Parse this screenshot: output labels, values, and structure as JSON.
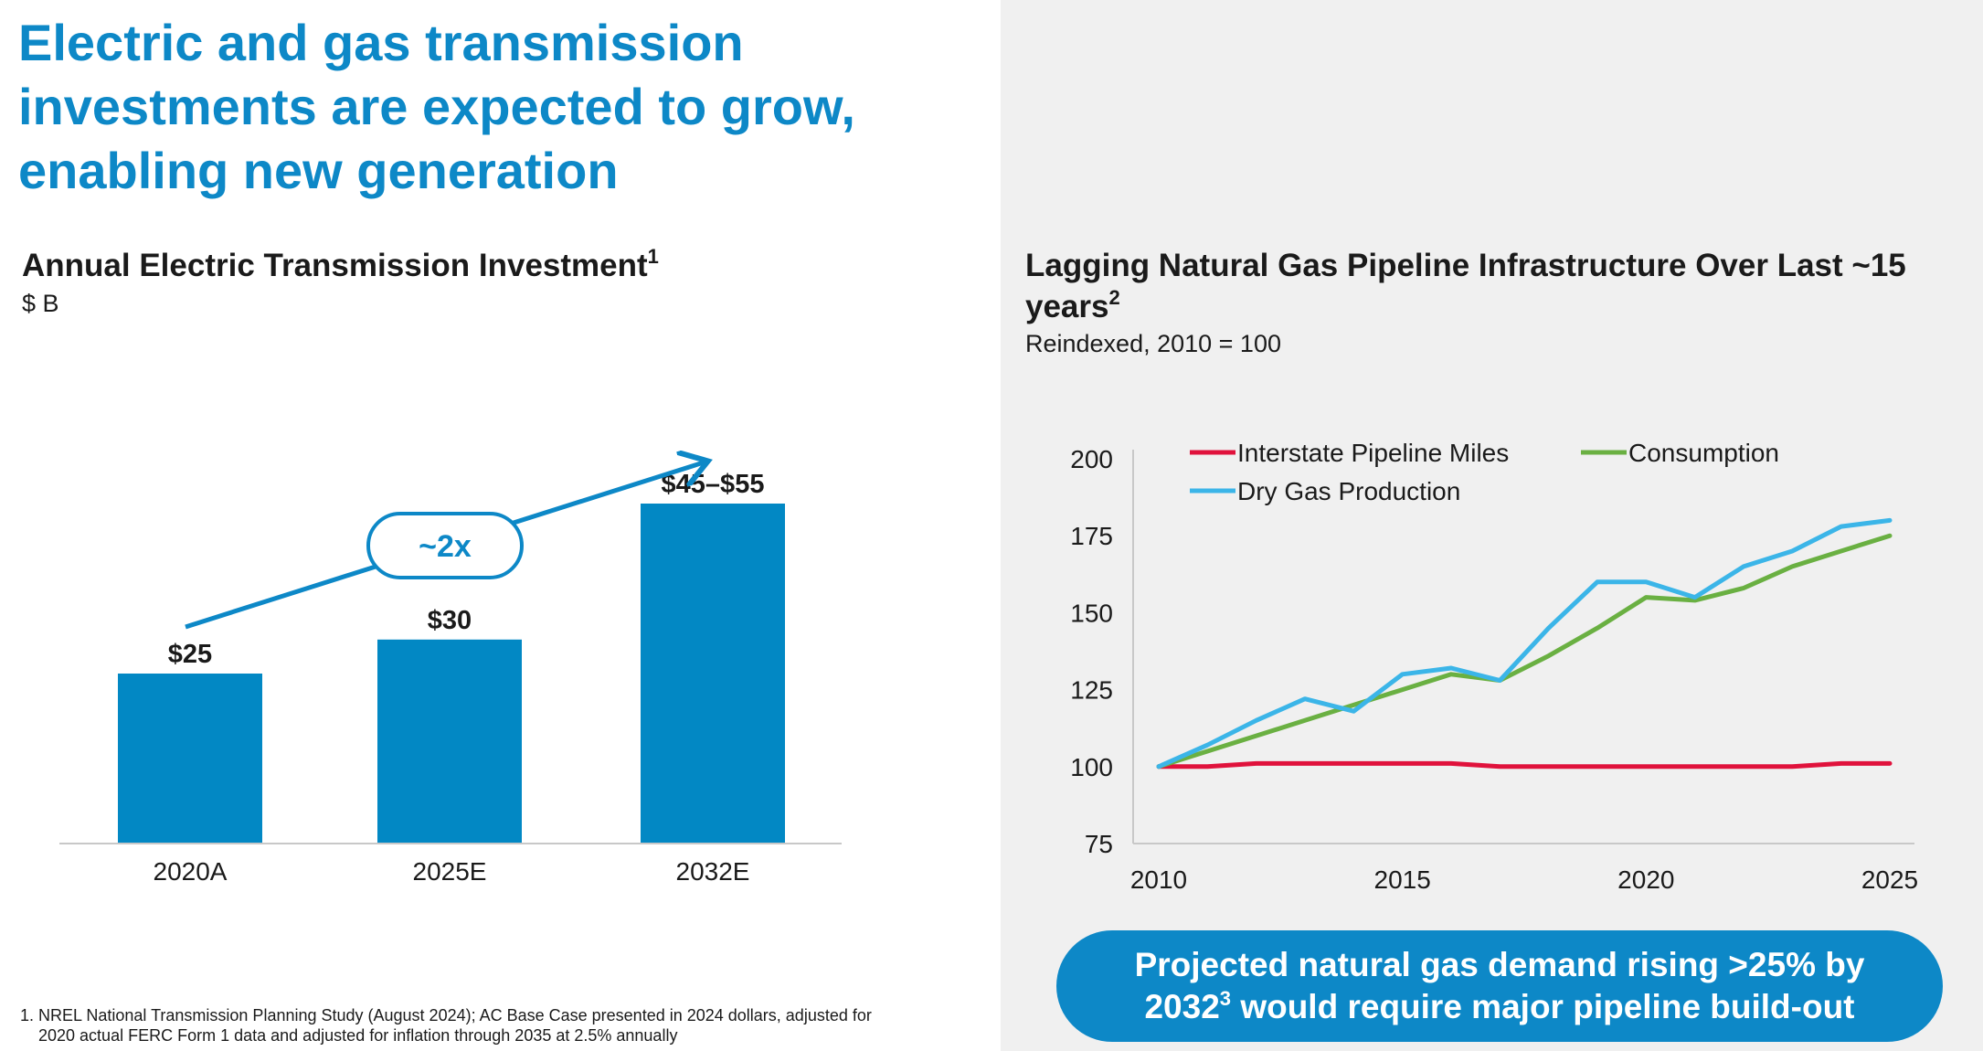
{
  "slide_title": "Electric and gas transmission investments are expected to grow, enabling new generation",
  "chart_data": [
    {
      "type": "bar",
      "title": "Annual Electric Transmission Investment",
      "title_footnote": "1",
      "subtitle": "$ B",
      "categories": [
        "2020A",
        "2025E",
        "2032E"
      ],
      "values": [
        25,
        30,
        50
      ],
      "data_labels": [
        "$25",
        "$30",
        "$45–$55"
      ],
      "annotation": "~2x",
      "color": "#0288c4"
    },
    {
      "type": "line",
      "title": "Lagging Natural Gas Pipeline Infrastructure Over Last ~15 years",
      "title_footnote": "2",
      "subtitle": "Reindexed, 2010 = 100",
      "x": [
        2010,
        2011,
        2012,
        2013,
        2014,
        2015,
        2016,
        2017,
        2018,
        2019,
        2020,
        2021,
        2022,
        2023,
        2024,
        2025
      ],
      "xticks": [
        2010,
        2015,
        2020,
        2025
      ],
      "yticks": [
        75,
        100,
        125,
        150,
        175,
        200
      ],
      "ylim": [
        75,
        200
      ],
      "legend_position": "top",
      "series": [
        {
          "name": "Interstate Pipeline Miles",
          "color": "#e0123c",
          "values": [
            100,
            100,
            101,
            101,
            101,
            101,
            101,
            100,
            100,
            100,
            100,
            100,
            100,
            100,
            101,
            101
          ]
        },
        {
          "name": "Consumption",
          "color": "#6ab042",
          "values": [
            100,
            105,
            110,
            115,
            120,
            125,
            130,
            128,
            136,
            145,
            155,
            154,
            158,
            165,
            170,
            175
          ]
        },
        {
          "name": "Dry Gas Production",
          "color": "#3bb5e8",
          "values": [
            100,
            107,
            115,
            122,
            118,
            130,
            132,
            128,
            145,
            160,
            160,
            155,
            165,
            170,
            178,
            180
          ]
        }
      ]
    }
  ],
  "callout": {
    "line1": "Projected natural gas demand rising >25% by",
    "line2_pre": "2032",
    "line2_sup": "3",
    "line2_post": " would require major pipeline build-out"
  },
  "footnote": {
    "line1": "1. NREL National Transmission Planning Study (August 2024); AC Base Case presented in 2024 dollars, adjusted for",
    "line2": "2020 actual FERC Form 1 data and adjusted for inflation through 2035 at 2.5% annually"
  }
}
